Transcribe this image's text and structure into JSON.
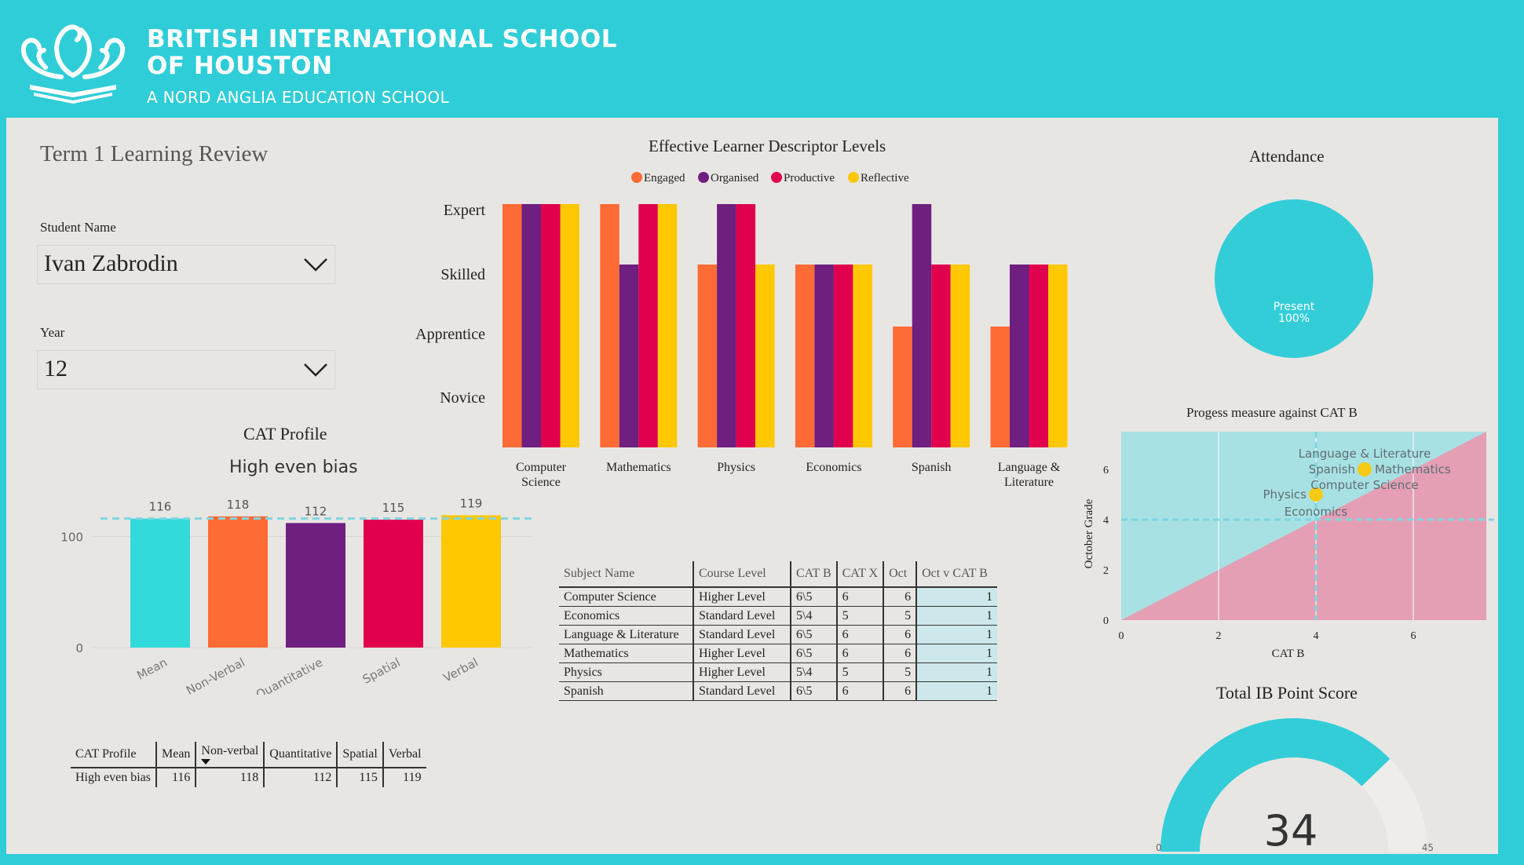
{
  "header": {
    "school_line1": "BRITISH INTERNATIONAL SCHOOL",
    "school_line2": "OF HOUSTON",
    "school_line3": "A NORD ANGLIA EDUCATION SCHOOL"
  },
  "page_title": "Term 1 Learning Review",
  "filters": {
    "student_label": "Student Name",
    "student_value": "Ivan Zabrodin",
    "year_label": "Year",
    "year_value": "12"
  },
  "colors": {
    "brand": "#2fcdd8",
    "engaged": "#ff6b35",
    "organised": "#6e1f80",
    "productive": "#e0004d",
    "reflective": "#ffc800",
    "mean": "#33dadb"
  },
  "cat_profile": {
    "title": "CAT Profile",
    "subtitle": "High even bias",
    "chart_data": {
      "type": "bar",
      "categories": [
        "Mean",
        "Non-Verbal",
        "Quantitative",
        "Spatial",
        "Verbal"
      ],
      "values": [
        116,
        118,
        112,
        115,
        119
      ],
      "reference_line": 116,
      "y_ticks": [
        "0",
        "100"
      ],
      "ylim": [
        0,
        120
      ]
    }
  },
  "cat_table": {
    "headers": [
      "CAT Profile",
      "Mean",
      "Non-verbal",
      "Quantitative",
      "Spatial",
      "Verbal"
    ],
    "row": [
      "High even bias",
      "116",
      "118",
      "112",
      "115",
      "119"
    ]
  },
  "eld": {
    "chart_data": {
      "type": "bar",
      "title": "Effective Learner Descriptor Levels",
      "categories": [
        "Computer Science",
        "Mathematics",
        "Physics",
        "Economics",
        "Spanish",
        "Language & Literature"
      ],
      "y_levels": [
        "Novice",
        "Apprentice",
        "Skilled",
        "Expert"
      ],
      "series": [
        {
          "name": "Engaged",
          "values": [
            4,
            4,
            3,
            3,
            2,
            2
          ]
        },
        {
          "name": "Organised",
          "values": [
            4,
            3,
            4,
            3,
            4,
            3
          ]
        },
        {
          "name": "Productive",
          "values": [
            4,
            4,
            4,
            3,
            3,
            3
          ]
        },
        {
          "name": "Reflective",
          "values": [
            4,
            4,
            3,
            3,
            3,
            3
          ]
        }
      ]
    }
  },
  "subjects_table": {
    "headers": [
      "Subject Name",
      "Course Level",
      "CAT B",
      "CAT X",
      "Oct",
      "Oct v CAT B"
    ],
    "rows": [
      [
        "Computer Science",
        "Higher Level",
        "6\\5",
        "6",
        "6",
        "1"
      ],
      [
        "Economics",
        "Standard Level",
        "5\\4",
        "5",
        "5",
        "1"
      ],
      [
        "Language & Literature",
        "Standard Level",
        "6\\5",
        "6",
        "6",
        "1"
      ],
      [
        "Mathematics",
        "Higher Level",
        "6\\5",
        "6",
        "6",
        "1"
      ],
      [
        "Physics",
        "Higher Level",
        "5\\4",
        "5",
        "5",
        "1"
      ],
      [
        "Spanish",
        "Standard Level",
        "6\\5",
        "6",
        "6",
        "1"
      ]
    ]
  },
  "attendance": {
    "title": "Attendance",
    "chart_data": {
      "type": "pie",
      "slices": [
        {
          "label": "Present",
          "value": 100
        }
      ],
      "label_line1": "Present",
      "label_line2": "100%"
    }
  },
  "progress": {
    "chart_data": {
      "type": "scatter",
      "title": "Progess measure against CAT B",
      "xlabel": "CAT B",
      "ylabel": "October Grade",
      "x_ticks": [
        "0",
        "2",
        "4",
        "6"
      ],
      "y_ticks": [
        "0",
        "2",
        "4",
        "6"
      ],
      "xlim": [
        0,
        7.5
      ],
      "ylim": [
        0,
        7.5
      ],
      "reference_x": 4,
      "reference_y": 4,
      "points": [
        {
          "label": "Language & Literature",
          "x": 5,
          "y": 6
        },
        {
          "label": "Spanish",
          "x": 5,
          "y": 6
        },
        {
          "label": "Mathematics",
          "x": 5,
          "y": 6
        },
        {
          "label": "Computer Science",
          "x": 5,
          "y": 6
        },
        {
          "label": "Physics",
          "x": 4,
          "y": 5
        },
        {
          "label": "Economics",
          "x": 4,
          "y": 5
        }
      ]
    }
  },
  "ib_score": {
    "title": "Total IB Point Score",
    "value": "34",
    "min": "0",
    "max": "45",
    "chart_data": {
      "type": "gauge",
      "value": 34,
      "min": 0,
      "max": 45
    }
  }
}
